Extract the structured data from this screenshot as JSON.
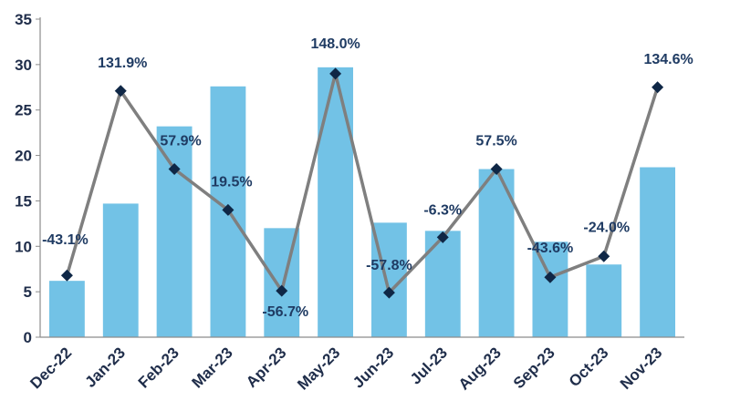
{
  "chart_data": {
    "type": "bar",
    "categories": [
      "Dec-22",
      "Jan-23",
      "Feb-23",
      "Mar-23",
      "Apr-23",
      "May-23",
      "Jun-23",
      "Jul-23",
      "Aug-23",
      "Sep-23",
      "Oct-23",
      "Nov-23"
    ],
    "series": [
      {
        "type": "bar",
        "values": [
          6.2,
          14.7,
          23.2,
          27.6,
          12.0,
          29.7,
          12.6,
          11.7,
          18.5,
          10.5,
          8.0,
          18.7
        ],
        "color": "#72c2e6"
      },
      {
        "type": "line",
        "values": [
          6.8,
          27.1,
          18.5,
          14.0,
          5.1,
          29.0,
          4.9,
          11.0,
          18.5,
          6.6,
          8.9,
          27.5
        ],
        "labels": [
          "-43.1%",
          "131.9%",
          "57.9%",
          "19.5%",
          "-56.7%",
          "148.0%",
          "-57.8%",
          "-6.3%",
          "57.5%",
          "-43.6%",
          "-24.0%",
          "134.6%"
        ],
        "color": "#7f7f7f",
        "marker_color": "#0f2746",
        "marker": "diamond"
      }
    ],
    "ylim": [
      0,
      35
    ],
    "yticks": [
      "0",
      "5",
      "10",
      "15",
      "20",
      "25",
      "30",
      "35"
    ],
    "grid": false,
    "legend": "none"
  }
}
